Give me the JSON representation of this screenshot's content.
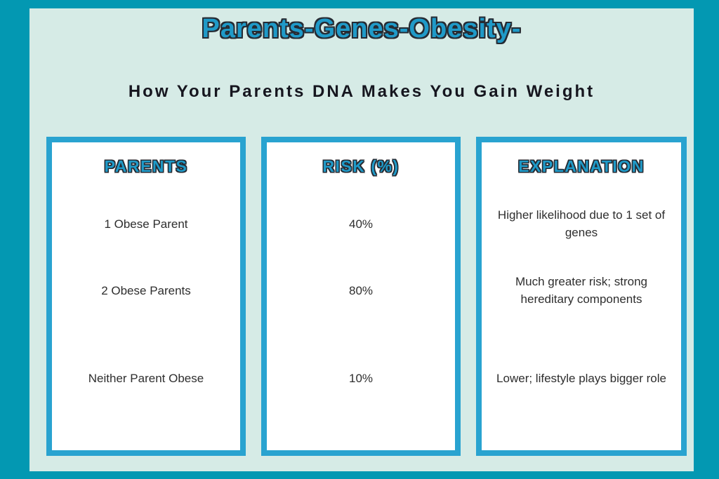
{
  "header": {
    "title": "Parents-Genes-Obesity-",
    "subtitle": "How Your Parents DNA Makes You Gain Weight"
  },
  "table": {
    "columns": [
      {
        "header": "PARENTS",
        "rows": [
          "1 Obese Parent",
          "2 Obese Parents",
          "Neither Parent Obese"
        ]
      },
      {
        "header": "RISK (%)",
        "rows": [
          "40%",
          "80%",
          "10%"
        ]
      },
      {
        "header": "EXPLANATION",
        "rows": [
          "Higher likelihood due to 1 set of genes",
          "Much greater risk; strong hereditary components",
          "Lower; lifestyle plays bigger role"
        ]
      }
    ]
  },
  "colors": {
    "outer_frame_teal": "#0398b2",
    "background_mint": "#d6ebe6",
    "card_border_blue": "#29a3d0",
    "accent_text_teal": "#1f9ac8",
    "text_outline_dark": "#262b33",
    "body_text": "#2e2e2e",
    "card_background": "#ffffff"
  },
  "chart_data": {
    "type": "table",
    "title": "Parents-Genes-Obesity-",
    "subtitle": "How Your Parents DNA Makes You Gain Weight",
    "columns": [
      "PARENTS",
      "RISK (%)",
      "EXPLANATION"
    ],
    "categories": [
      "1 Obese Parent",
      "2 Obese Parents",
      "Neither Parent Obese"
    ],
    "values": [
      40,
      80,
      10
    ],
    "explanations": [
      "Higher likelihood due to 1 set of genes",
      "Much greater risk; strong hereditary components",
      "Lower; lifestyle plays bigger role"
    ]
  }
}
